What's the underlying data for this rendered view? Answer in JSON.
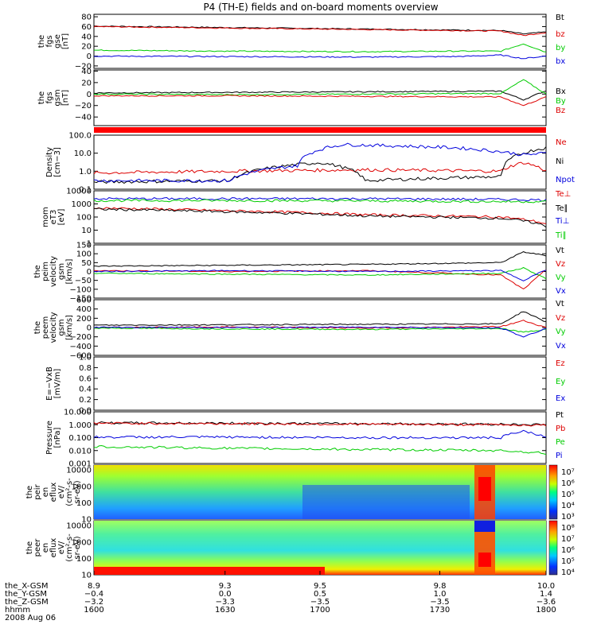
{
  "chart_data": {
    "title": "P4 (TH-E) fields and on-board moments overview",
    "type": "line",
    "panels": [
      {
        "id": "fgs_gse",
        "ylabel": [
          "the",
          "fgs",
          "gse",
          "[nT]"
        ],
        "scale": "linear",
        "ylim": [
          -25,
          85
        ],
        "ticks": [
          80,
          60,
          40,
          20,
          0,
          -20
        ],
        "tick_labels": [
          "80",
          "60",
          "40",
          "20",
          "0",
          "−20"
        ],
        "series": [
          {
            "name": "Bt",
            "color": "#000000"
          },
          {
            "name": "bz",
            "color": "#dd0000"
          },
          {
            "name": "by",
            "color": "#00cc00"
          },
          {
            "name": "bx",
            "color": "#0000dd"
          }
        ],
        "approx_values": {
          "Bt": [
            [
              0,
              61
            ],
            [
              0.3,
              58
            ],
            [
              0.6,
              55
            ],
            [
              0.8,
              53
            ],
            [
              0.9,
              52
            ],
            [
              0.95,
              45
            ],
            [
              1,
              49
            ]
          ],
          "bz": [
            [
              0,
              60
            ],
            [
              0.3,
              57
            ],
            [
              0.6,
              54
            ],
            [
              0.8,
              52
            ],
            [
              0.9,
              51
            ],
            [
              0.95,
              42
            ],
            [
              1,
              48
            ]
          ],
          "by": [
            [
              0,
              12
            ],
            [
              0.3,
              10
            ],
            [
              0.6,
              9
            ],
            [
              0.8,
              10
            ],
            [
              0.9,
              10
            ],
            [
              0.95,
              25
            ],
            [
              1,
              8
            ]
          ],
          "bx": [
            [
              0,
              0
            ],
            [
              0.3,
              -1
            ],
            [
              0.6,
              -2
            ],
            [
              0.8,
              -1
            ],
            [
              0.9,
              2
            ],
            [
              0.95,
              -5
            ],
            [
              1,
              0
            ]
          ]
        }
      },
      {
        "id": "fgs_gsm",
        "ylabel": [
          "the",
          "fgs",
          "gsm",
          "[nT]"
        ],
        "scale": "linear",
        "ylim": [
          -55,
          42
        ],
        "ticks": [
          40,
          20,
          0,
          -20,
          -40
        ],
        "tick_labels": [
          "40",
          "20",
          "0",
          "−20",
          "−40"
        ],
        "series": [
          {
            "name": "Bx",
            "color": "#000000"
          },
          {
            "name": "By",
            "color": "#00cc00"
          },
          {
            "name": "Bz",
            "color": "#dd0000"
          }
        ],
        "approx_values": {
          "Bx": [
            [
              0,
              2
            ],
            [
              0.3,
              3
            ],
            [
              0.6,
              4
            ],
            [
              0.9,
              5
            ],
            [
              0.95,
              -10
            ],
            [
              1,
              6
            ]
          ],
          "By": [
            [
              0,
              0
            ],
            [
              0.3,
              -1
            ],
            [
              0.6,
              0
            ],
            [
              0.9,
              1
            ],
            [
              0.95,
              25
            ],
            [
              1,
              0
            ]
          ],
          "Bz": [
            [
              0,
              -3
            ],
            [
              0.3,
              -3
            ],
            [
              0.6,
              -4
            ],
            [
              0.9,
              -5
            ],
            [
              0.95,
              -20
            ],
            [
              1,
              -5
            ]
          ]
        }
      },
      {
        "id": "density",
        "ylabel": [
          "Density",
          "[cm−3]"
        ],
        "scale": "log",
        "ylim": [
          0.1,
          100
        ],
        "ticks": [
          100,
          10,
          1,
          0.1
        ],
        "tick_labels": [
          "100.0",
          "10.0",
          "1.0",
          "0.1"
        ],
        "series": [
          {
            "name": "Ne",
            "color": "#dd0000"
          },
          {
            "name": "Ni",
            "color": "#000000"
          },
          {
            "name": "Npot",
            "color": "#0000dd"
          }
        ],
        "approx_values": {
          "Ne": [
            [
              0,
              0.8
            ],
            [
              0.3,
              1.0
            ],
            [
              0.6,
              1.2
            ],
            [
              0.9,
              1.0
            ],
            [
              0.95,
              3
            ],
            [
              1,
              1
            ]
          ],
          "Ni": [
            [
              0,
              0.25
            ],
            [
              0.3,
              0.3
            ],
            [
              0.5,
              3
            ],
            [
              0.6,
              0.3
            ],
            [
              0.9,
              0.5
            ],
            [
              1,
              20
            ]
          ],
          "Npot": [
            [
              0,
              0.3
            ],
            [
              0.3,
              0.3
            ],
            [
              0.45,
              2
            ],
            [
              0.55,
              30
            ],
            [
              0.8,
              20
            ],
            [
              0.95,
              8
            ],
            [
              1,
              10
            ]
          ]
        }
      },
      {
        "id": "temperature",
        "ylabel": [
          "mom",
          "eT3",
          "[eV]"
        ],
        "scale": "log",
        "ylim": [
          1,
          10000
        ],
        "ticks": [
          10000,
          1000,
          100,
          10,
          1
        ],
        "tick_labels": [
          "10000",
          "1000",
          "100",
          "10",
          "1"
        ],
        "series": [
          {
            "name": "Te⊥",
            "color": "#dd0000"
          },
          {
            "name": "Te∥",
            "color": "#000000"
          },
          {
            "name": "Ti⊥",
            "color": "#0000dd"
          },
          {
            "name": "Ti∥",
            "color": "#00cc00"
          }
        ],
        "approx_values": {
          "Te⊥": [
            [
              0,
              500
            ],
            [
              0.3,
              300
            ],
            [
              0.6,
              150
            ],
            [
              0.9,
              100
            ],
            [
              1,
              30
            ]
          ],
          "Te∥": [
            [
              0,
              400
            ],
            [
              0.3,
              250
            ],
            [
              0.6,
              120
            ],
            [
              0.9,
              80
            ],
            [
              1,
              20
            ]
          ],
          "Ti⊥": [
            [
              0,
              2500
            ],
            [
              0.3,
              2500
            ],
            [
              0.6,
              2500
            ],
            [
              0.9,
              2200
            ],
            [
              1,
              2000
            ]
          ],
          "Ti∥": [
            [
              0,
              1800
            ],
            [
              0.3,
              1800
            ],
            [
              0.6,
              1700
            ],
            [
              0.9,
              1500
            ],
            [
              1,
              1500
            ]
          ]
        }
      },
      {
        "id": "velocity_gsm",
        "ylabel": [
          "the",
          "peim",
          "velocity",
          "gsm",
          "[km/s]"
        ],
        "scale": "linear",
        "ylim": [
          -150,
          150
        ],
        "ticks": [
          150,
          100,
          50,
          0,
          -50,
          -100,
          -150
        ],
        "tick_labels": [
          "150",
          "100",
          "50",
          "0",
          "−50",
          "−100",
          "−150"
        ],
        "series": [
          {
            "name": "Vt",
            "color": "#000000"
          },
          {
            "name": "Vz",
            "color": "#dd0000"
          },
          {
            "name": "Vy",
            "color": "#00cc00"
          },
          {
            "name": "Vx",
            "color": "#0000dd"
          }
        ],
        "approx_values": {
          "Vt": [
            [
              0,
              30
            ],
            [
              0.3,
              35
            ],
            [
              0.6,
              40
            ],
            [
              0.9,
              50
            ],
            [
              0.95,
              110
            ],
            [
              1,
              90
            ]
          ],
          "Vz": [
            [
              0,
              5
            ],
            [
              0.3,
              0
            ],
            [
              0.6,
              5
            ],
            [
              0.9,
              -20
            ],
            [
              0.95,
              -100
            ],
            [
              1,
              10
            ]
          ],
          "Vy": [
            [
              0,
              -10
            ],
            [
              0.3,
              -15
            ],
            [
              0.6,
              -20
            ],
            [
              0.9,
              -10
            ],
            [
              0.95,
              20
            ],
            [
              1,
              -40
            ]
          ],
          "Vx": [
            [
              0,
              0
            ],
            [
              0.3,
              5
            ],
            [
              0.6,
              0
            ],
            [
              0.9,
              5
            ],
            [
              0.95,
              -50
            ],
            [
              1,
              10
            ]
          ]
        }
      },
      {
        "id": "velocity_gsm_e",
        "ylabel": [
          "the",
          "peem",
          "velocity",
          "gsm",
          "[km/s]"
        ],
        "scale": "linear",
        "ylim": [
          -600,
          600
        ],
        "ticks": [
          600,
          400,
          200,
          0,
          -200,
          -400,
          -600
        ],
        "tick_labels": [
          "600",
          "400",
          "200",
          "0",
          "−200",
          "−400",
          "−600"
        ],
        "series": [
          {
            "name": "Vt",
            "color": "#000000"
          },
          {
            "name": "Vz",
            "color": "#dd0000"
          },
          {
            "name": "Vy",
            "color": "#00cc00"
          },
          {
            "name": "Vx",
            "color": "#0000dd"
          }
        ],
        "approx_values": {
          "Vt": [
            [
              0,
              50
            ],
            [
              0.3,
              60
            ],
            [
              0.6,
              70
            ],
            [
              0.9,
              80
            ],
            [
              0.95,
              350
            ],
            [
              1,
              120
            ]
          ],
          "Vz": [
            [
              0,
              0
            ],
            [
              0.3,
              10
            ],
            [
              0.6,
              -10
            ],
            [
              0.9,
              20
            ],
            [
              0.95,
              150
            ],
            [
              1,
              0
            ]
          ],
          "Vy": [
            [
              0,
              -10
            ],
            [
              0.3,
              -30
            ],
            [
              0.6,
              -40
            ],
            [
              0.9,
              -20
            ],
            [
              0.95,
              -100
            ],
            [
              1,
              -40
            ]
          ],
          "Vx": [
            [
              0,
              5
            ],
            [
              0.3,
              0
            ],
            [
              0.6,
              10
            ],
            [
              0.9,
              -10
            ],
            [
              0.95,
              -200
            ],
            [
              1,
              -20
            ]
          ]
        }
      },
      {
        "id": "efield",
        "ylabel": [
          "E=−VxB",
          "[mV/m]"
        ],
        "scale": "linear",
        "ylim": [
          0,
          1
        ],
        "ticks": [
          1.0,
          0.8,
          0.6,
          0.4,
          0.2,
          0.0
        ],
        "tick_labels": [
          "1.0",
          "0.8",
          "0.6",
          "0.4",
          "0.2",
          "0.0"
        ],
        "series": [
          {
            "name": "Ez",
            "color": "#dd0000"
          },
          {
            "name": "Ey",
            "color": "#00cc00"
          },
          {
            "name": "Ex",
            "color": "#0000dd"
          }
        ]
      },
      {
        "id": "pressure",
        "ylabel": [
          "Pressure",
          "[nPa]"
        ],
        "scale": "log",
        "ylim": [
          0.001,
          10
        ],
        "ticks": [
          10,
          1,
          0.1,
          0.01,
          0.001
        ],
        "tick_labels": [
          "10.000",
          "1.000",
          "0.100",
          "0.010",
          "0.001"
        ],
        "series": [
          {
            "name": "Pt",
            "color": "#000000"
          },
          {
            "name": "Pb",
            "color": "#dd0000"
          },
          {
            "name": "Pe",
            "color": "#00cc00"
          },
          {
            "name": "Pi",
            "color": "#0000dd"
          }
        ],
        "approx_values": {
          "Pt": [
            [
              0,
              1.4
            ],
            [
              0.3,
              1.3
            ],
            [
              0.6,
              1.2
            ],
            [
              0.9,
              1.1
            ],
            [
              1,
              1.0
            ]
          ],
          "Pb": [
            [
              0,
              1.3
            ],
            [
              0.3,
              1.2
            ],
            [
              0.6,
              1.1
            ],
            [
              0.9,
              1.0
            ],
            [
              1,
              0.9
            ]
          ],
          "Pe": [
            [
              0,
              0.02
            ],
            [
              0.3,
              0.015
            ],
            [
              0.6,
              0.012
            ],
            [
              0.9,
              0.01
            ],
            [
              1,
              0.006
            ]
          ],
          "Pi": [
            [
              0,
              0.11
            ],
            [
              0.3,
              0.11
            ],
            [
              0.6,
              0.1
            ],
            [
              0.9,
              0.1
            ],
            [
              0.95,
              0.3
            ],
            [
              1,
              0.09
            ]
          ]
        }
      },
      {
        "id": "ion_spectrogram",
        "ylabel": [
          "the",
          "peir",
          "en",
          "eflux",
          "eV/",
          "(cm²-s-",
          "sr-eV)"
        ],
        "scale": "log",
        "ylim": [
          10,
          20000
        ],
        "ticks": [
          10000,
          1000,
          100,
          10
        ],
        "tick_labels": [
          "10000",
          "1000",
          "100",
          "10"
        ],
        "colorbar_labels": [
          "10⁷",
          "10⁶",
          "10⁵",
          "10⁴",
          "10³"
        ]
      },
      {
        "id": "electron_spectrogram",
        "ylabel": [
          "the",
          "peer",
          "en",
          "eflux",
          "eV/",
          "(cm²-s-",
          "sr-eV)"
        ],
        "scale": "log",
        "ylim": [
          10,
          20000
        ],
        "ticks": [
          10000,
          1000,
          100,
          10
        ],
        "tick_labels": [
          "10000",
          "1000",
          "100",
          "10"
        ],
        "colorbar_labels": [
          "10⁸",
          "10⁷",
          "10⁶",
          "10⁵",
          "10⁴"
        ]
      }
    ],
    "x_axis": {
      "rows": [
        {
          "label": "the_X-GSM",
          "values": [
            "8.9",
            "9.3",
            "9.5",
            "9.8",
            "10.0"
          ]
        },
        {
          "label": "the_Y-GSM",
          "values": [
            "−0.4",
            "0.0",
            "0.5",
            "1.0",
            "1.4"
          ]
        },
        {
          "label": "the_Z-GSM",
          "values": [
            "−3.2",
            "−3.3",
            "−3.5",
            "−3.5",
            "−3.6"
          ]
        },
        {
          "label": "hhmm",
          "values": [
            "1600",
            "1630",
            "1700",
            "1730",
            "1800"
          ]
        }
      ],
      "date": "2008 Aug 06"
    }
  }
}
